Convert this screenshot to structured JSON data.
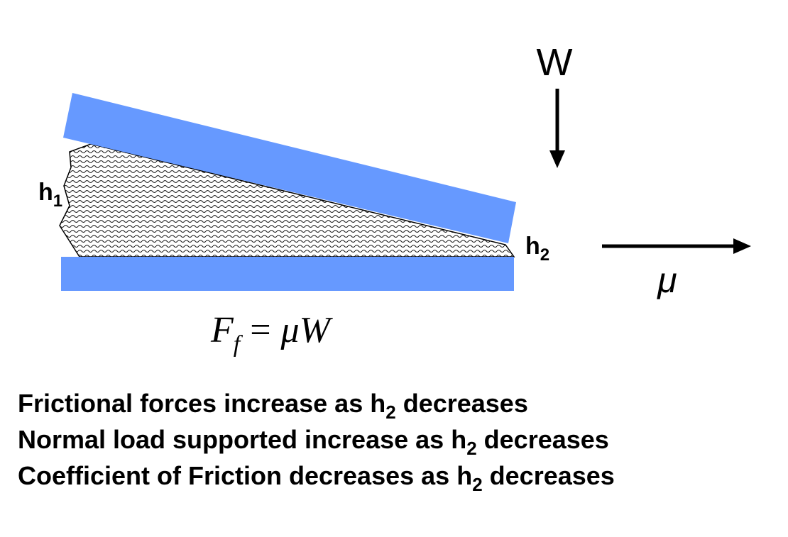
{
  "labels": {
    "load": "W",
    "h1": {
      "base": "h",
      "sub": "1"
    },
    "h2": {
      "base": "h",
      "sub": "2"
    },
    "velocity": "μ"
  },
  "formula": {
    "lhs": "F",
    "lhs_sub": "f",
    "op": "=",
    "rhs": "μW"
  },
  "statements": [
    {
      "before": "Frictional forces increase as h",
      "sub": "2",
      "after": "decreases"
    },
    {
      "before": "Normal load supported increase as h",
      "sub": "2",
      "after": "decreases"
    },
    {
      "before": "Coefficient of Friction decreases as h",
      "sub": "2",
      "after": "decreases"
    }
  ]
}
